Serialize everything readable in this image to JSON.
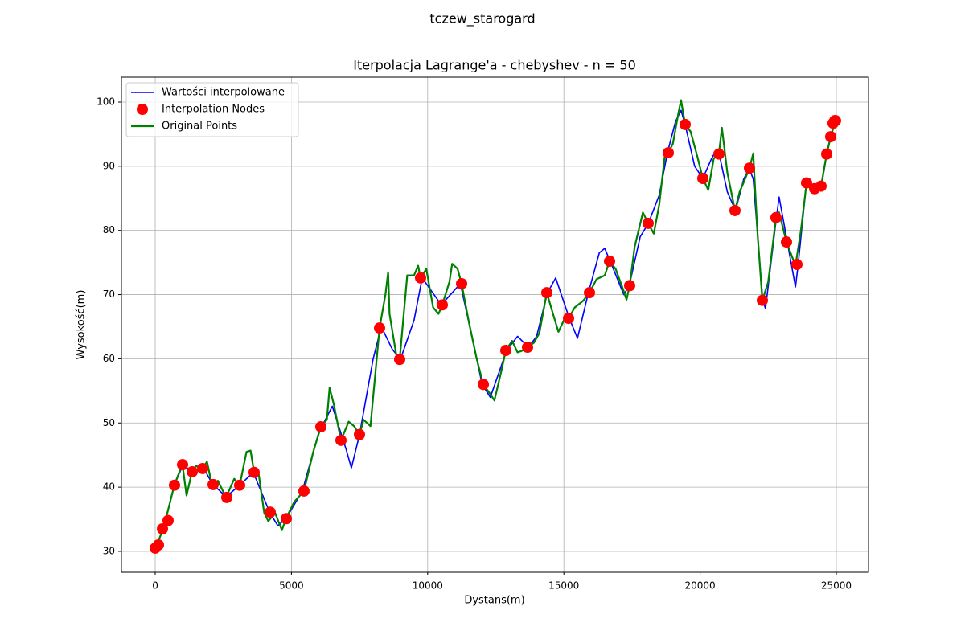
{
  "chart_data": {
    "type": "line",
    "title": "tczew_starogard",
    "subtitle": "Iterpolacja Lagrange'a - chebyshev - n = 50",
    "xlabel": "Dystans(m)",
    "ylabel": "Wysokość(m)",
    "xlim": [
      -1240,
      26181
    ],
    "ylim": [
      26.74,
      103.88
    ],
    "xticks": [
      0,
      5000,
      10000,
      15000,
      20000,
      25000
    ],
    "yticks": [
      30,
      40,
      50,
      60,
      70,
      80,
      90,
      100
    ],
    "grid": true,
    "legend": "upper left",
    "series": [
      {
        "name": "Wartości interpolowane",
        "type": "line",
        "color": "#0000ff",
        "x": [
          0,
          300,
          700,
          1000,
          1400,
          1800,
          2100,
          2600,
          3100,
          3600,
          4200,
          4500,
          4800,
          5400,
          6000,
          6500,
          7000,
          7200,
          7500,
          8000,
          8300,
          8700,
          9000,
          9500,
          9800,
          10500,
          11200,
          11700,
          12000,
          12300,
          12900,
          13300,
          13700,
          14000,
          14400,
          14700,
          15200,
          15500,
          15900,
          16300,
          16500,
          16700,
          17200,
          17400,
          17800,
          18100,
          18500,
          18800,
          19100,
          19300,
          19450,
          19800,
          20100,
          20400,
          20600,
          20700,
          21000,
          21300,
          21600,
          21800,
          21950,
          22300,
          22400,
          22800,
          22900,
          23200,
          23500,
          23600,
          23900,
          24200,
          24450,
          24650,
          24800,
          24970
        ],
        "values": [
          30.5,
          33.5,
          40.3,
          43.3,
          42.5,
          42.8,
          40.5,
          38.5,
          40.3,
          42.3,
          36.1,
          34,
          35.1,
          39.4,
          48.5,
          52.6,
          46,
          43,
          48.2,
          60,
          65,
          61.5,
          59.9,
          66,
          72.6,
          68.4,
          71.7,
          62,
          56,
          54,
          61.3,
          63.5,
          61.8,
          63.5,
          70.3,
          72.6,
          66.3,
          63.2,
          70.3,
          76.5,
          77.2,
          75.2,
          70,
          71.4,
          79,
          81.1,
          85.5,
          92.1,
          97,
          98.7,
          96.5,
          90,
          88.1,
          91,
          92.6,
          91.9,
          86,
          83.1,
          88,
          89.7,
          88,
          69.1,
          67.8,
          82,
          85.2,
          78.2,
          71.2,
          74.7,
          87.4,
          86.5,
          86.9,
          91.9,
          94.6,
          97.1
        ]
      },
      {
        "name": "Interpolation Nodes",
        "type": "scatter",
        "color": "#ff0000",
        "x": [
          0,
          118,
          266,
          472,
          708,
          1004,
          1358,
          1741,
          2125,
          2627,
          3099,
          3630,
          4221,
          4811,
          5460,
          6080,
          6818,
          7497,
          8235,
          8973,
          9740,
          10537,
          11246,
          12043,
          12869,
          13666,
          14374,
          15171,
          15939,
          16677,
          17414,
          18093,
          18831,
          19451,
          20100,
          20690,
          21281,
          21812,
          22285,
          22786,
          23170,
          23554,
          23908,
          24203,
          24439,
          24646,
          24793,
          24882,
          24941,
          24970
        ],
        "values": [
          30.5,
          31.0,
          33.5,
          34.8,
          40.3,
          43.5,
          42.4,
          42.9,
          40.4,
          38.4,
          40.3,
          42.3,
          36.1,
          35.1,
          39.4,
          49.4,
          47.3,
          48.2,
          64.8,
          59.9,
          72.6,
          68.4,
          71.7,
          56.0,
          61.3,
          61.8,
          70.3,
          66.3,
          70.3,
          75.2,
          71.4,
          81.1,
          92.1,
          96.5,
          88.1,
          91.9,
          83.1,
          89.7,
          69.1,
          82.0,
          78.2,
          74.7,
          87.4,
          86.5,
          86.9,
          91.9,
          94.6,
          96.7,
          97.1,
          97.1
        ]
      },
      {
        "name": "Original Points",
        "type": "line",
        "color": "#008000",
        "x": [
          0,
          300,
          700,
          900,
          1000,
          1150,
          1350,
          1500,
          1750,
          1900,
          2100,
          2300,
          2600,
          2900,
          3100,
          3350,
          3500,
          3630,
          3800,
          4000,
          4150,
          4400,
          4650,
          4800,
          5100,
          5460,
          5800,
          6080,
          6300,
          6400,
          6550,
          6818,
          7100,
          7300,
          7497,
          7650,
          7900,
          8235,
          8450,
          8550,
          8600,
          8900,
          8973,
          9250,
          9500,
          9650,
          9740,
          9950,
          10200,
          10400,
          10537,
          10800,
          10900,
          11100,
          11246,
          11500,
          11800,
          12043,
          12300,
          12450,
          12700,
          12869,
          13100,
          13300,
          13500,
          13666,
          13900,
          14100,
          14374,
          14600,
          14800,
          15000,
          15171,
          15400,
          15700,
          15939,
          16200,
          16500,
          16677,
          16900,
          17200,
          17300,
          17414,
          17600,
          17800,
          17900,
          18093,
          18300,
          18500,
          18700,
          18831,
          19000,
          19200,
          19300,
          19451,
          19650,
          19900,
          20100,
          20300,
          20500,
          20690,
          20800,
          21000,
          21281,
          21450,
          21600,
          21812,
          21950,
          22100,
          22285,
          22500,
          22786,
          22900,
          23170,
          23500,
          23700,
          23908,
          24100,
          24203,
          24439,
          24646,
          24793,
          24970
        ],
        "values": [
          30.5,
          33.5,
          40.3,
          42.5,
          43.5,
          38.7,
          42.4,
          43.3,
          42.9,
          44,
          40,
          41,
          38.4,
          41.3,
          40.3,
          45.5,
          45.7,
          42.3,
          42,
          36,
          34.7,
          36,
          33.3,
          35.1,
          37.7,
          39.4,
          45.5,
          49.4,
          50.5,
          55.5,
          53,
          47.3,
          50.2,
          49.5,
          48.2,
          50.5,
          49.5,
          64.8,
          70,
          73.5,
          67,
          59.3,
          59.9,
          73,
          73,
          74.5,
          72.6,
          74,
          68,
          67,
          68.4,
          72,
          74.8,
          74,
          71.7,
          66,
          60,
          56,
          54.5,
          53.5,
          58,
          61.3,
          62.8,
          61,
          61.3,
          61.8,
          62.5,
          64,
          70.3,
          67,
          64.2,
          66,
          66.3,
          68,
          69,
          70.3,
          72.4,
          73,
          75.2,
          74,
          70.5,
          69.2,
          71.4,
          77.5,
          81,
          82.8,
          81.1,
          79.5,
          84,
          91.5,
          92.1,
          93.5,
          98.2,
          100.3,
          96.5,
          95.4,
          91.5,
          88.1,
          86.3,
          91.2,
          91.9,
          96,
          89,
          83.1,
          86,
          87.5,
          89.7,
          92,
          80,
          69.1,
          72,
          82,
          82.8,
          78.2,
          74.5,
          80,
          87.4,
          87,
          86.5,
          86.9,
          91.9,
          94.6,
          97.1
        ]
      }
    ]
  }
}
